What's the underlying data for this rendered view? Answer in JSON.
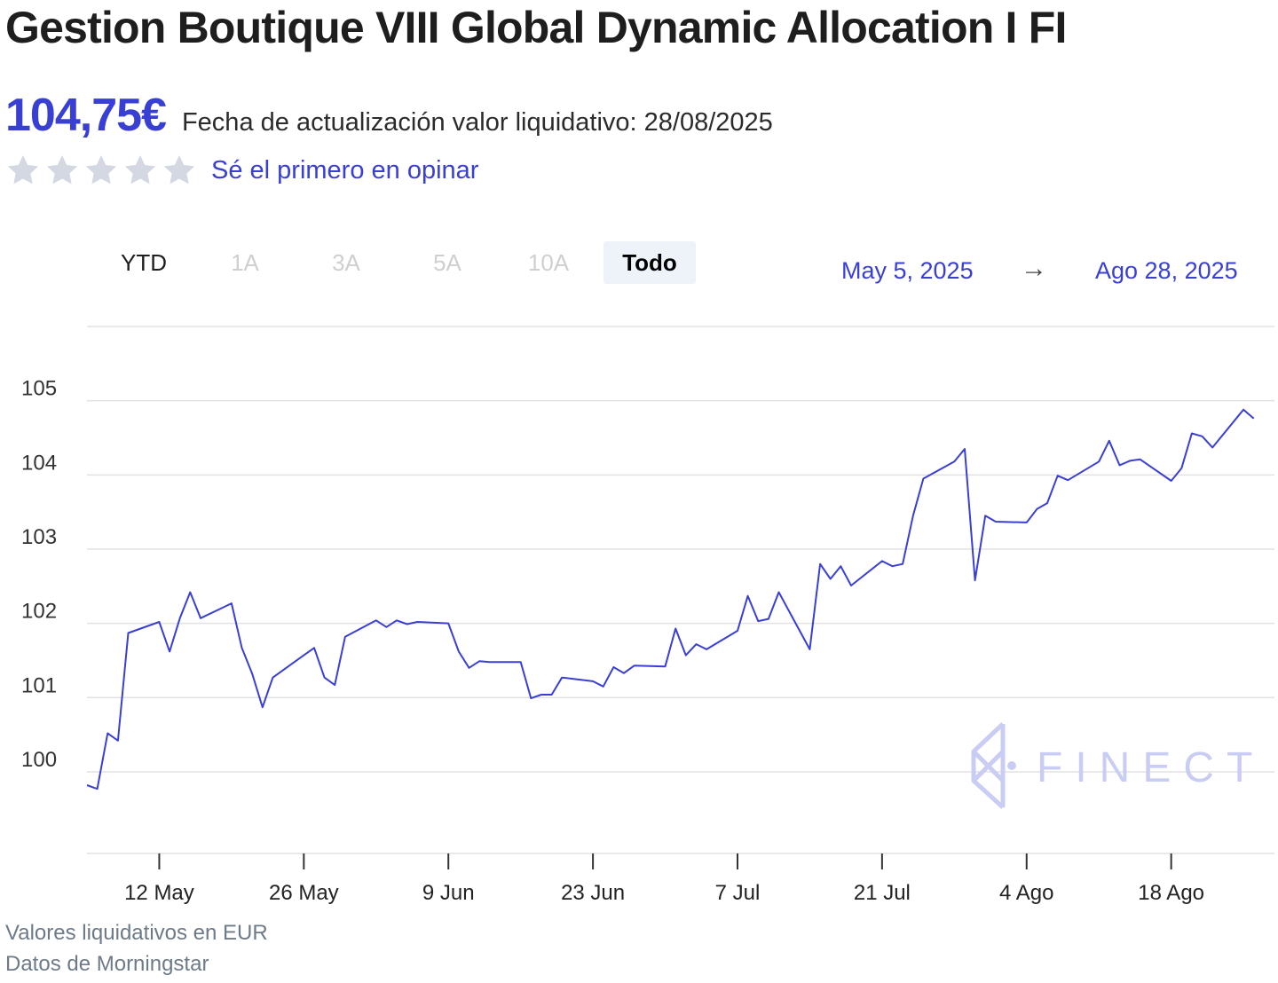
{
  "header": {
    "title": "Gestion Boutique VIII Global Dynamic Allocation I FI",
    "price": "104,75€",
    "update_label": "Fecha de actualización valor liquidativo: 28/08/2025"
  },
  "rating": {
    "stars": 5,
    "star_color": "#d3d8e2",
    "link": "Sé el primero en opinar"
  },
  "tabs": [
    {
      "label": "YTD",
      "state": "enabled"
    },
    {
      "label": "1A",
      "state": "disabled"
    },
    {
      "label": "3A",
      "state": "disabled"
    },
    {
      "label": "5A",
      "state": "disabled"
    },
    {
      "label": "10A",
      "state": "disabled"
    },
    {
      "label": "Todo",
      "state": "selected"
    }
  ],
  "date_range": {
    "from": "May 5, 2025",
    "arrow": "→",
    "to": "Ago 28, 2025"
  },
  "footer": {
    "currency_note": "Valores liquidativos en EUR",
    "source": "Datos de Morningstar"
  },
  "watermark": {
    "text": "FINECT"
  },
  "colors": {
    "accent": "#3a3fd4",
    "line": "#3a3fd4",
    "grid": "#e2e2e2",
    "watermark": "#c9cdf3"
  },
  "chart_data": {
    "type": "line",
    "title": "",
    "xlabel": "",
    "ylabel": "",
    "x_start": "2025-05-05",
    "x_end": "2025-08-28",
    "ylim": [
      98.9,
      106
    ],
    "yticks": [
      100,
      101,
      102,
      103,
      104,
      105
    ],
    "xticks": [
      {
        "label": "12 May",
        "date": "2025-05-12"
      },
      {
        "label": "26 May",
        "date": "2025-05-26"
      },
      {
        "label": "9 Jun",
        "date": "2025-06-09"
      },
      {
        "label": "23 Jun",
        "date": "2025-06-23"
      },
      {
        "label": "7 Jul",
        "date": "2025-07-07"
      },
      {
        "label": "21 Jul",
        "date": "2025-07-21"
      },
      {
        "label": "4 Ago",
        "date": "2025-08-04"
      },
      {
        "label": "18 Ago",
        "date": "2025-08-18"
      }
    ],
    "grid": true,
    "series": [
      {
        "name": "",
        "points": [
          [
            "2025-05-05",
            99.82
          ],
          [
            "2025-05-06",
            99.77
          ],
          [
            "2025-05-07",
            100.52
          ],
          [
            "2025-05-08",
            100.42
          ],
          [
            "2025-05-09",
            101.87
          ],
          [
            "2025-05-12",
            102.02
          ],
          [
            "2025-05-13",
            101.62
          ],
          [
            "2025-05-14",
            102.07
          ],
          [
            "2025-05-15",
            102.42
          ],
          [
            "2025-05-16",
            102.07
          ],
          [
            "2025-05-19",
            102.27
          ],
          [
            "2025-05-20",
            101.67
          ],
          [
            "2025-05-21",
            101.32
          ],
          [
            "2025-05-22",
            100.87
          ],
          [
            "2025-05-23",
            101.27
          ],
          [
            "2025-05-26",
            101.57
          ],
          [
            "2025-05-27",
            101.67
          ],
          [
            "2025-05-28",
            101.27
          ],
          [
            "2025-05-29",
            101.17
          ],
          [
            "2025-05-30",
            101.82
          ],
          [
            "2025-06-02",
            102.04
          ],
          [
            "2025-06-03",
            101.95
          ],
          [
            "2025-06-04",
            102.04
          ],
          [
            "2025-06-05",
            101.99
          ],
          [
            "2025-06-06",
            102.02
          ],
          [
            "2025-06-09",
            102.0
          ],
          [
            "2025-06-10",
            101.62
          ],
          [
            "2025-06-11",
            101.4
          ],
          [
            "2025-06-12",
            101.49
          ],
          [
            "2025-06-13",
            101.48
          ],
          [
            "2025-06-16",
            101.48
          ],
          [
            "2025-06-17",
            100.99
          ],
          [
            "2025-06-18",
            101.04
          ],
          [
            "2025-06-19",
            101.04
          ],
          [
            "2025-06-20",
            101.27
          ],
          [
            "2025-06-23",
            101.22
          ],
          [
            "2025-06-24",
            101.15
          ],
          [
            "2025-06-25",
            101.41
          ],
          [
            "2025-06-26",
            101.33
          ],
          [
            "2025-06-27",
            101.43
          ],
          [
            "2025-06-30",
            101.42
          ],
          [
            "2025-07-01",
            101.93
          ],
          [
            "2025-07-02",
            101.57
          ],
          [
            "2025-07-03",
            101.72
          ],
          [
            "2025-07-04",
            101.65
          ],
          [
            "2025-07-07",
            101.9
          ],
          [
            "2025-07-08",
            102.37
          ],
          [
            "2025-07-09",
            102.03
          ],
          [
            "2025-07-10",
            102.06
          ],
          [
            "2025-07-11",
            102.42
          ],
          [
            "2025-07-14",
            101.65
          ],
          [
            "2025-07-15",
            102.8
          ],
          [
            "2025-07-16",
            102.6
          ],
          [
            "2025-07-17",
            102.77
          ],
          [
            "2025-07-18",
            102.51
          ],
          [
            "2025-07-21",
            102.84
          ],
          [
            "2025-07-22",
            102.77
          ],
          [
            "2025-07-23",
            102.8
          ],
          [
            "2025-07-24",
            103.45
          ],
          [
            "2025-07-25",
            103.95
          ],
          [
            "2025-07-28",
            104.18
          ],
          [
            "2025-07-29",
            104.35
          ],
          [
            "2025-07-30",
            102.58
          ],
          [
            "2025-07-31",
            103.45
          ],
          [
            "2025-08-01",
            103.37
          ],
          [
            "2025-08-04",
            103.36
          ],
          [
            "2025-08-05",
            103.54
          ],
          [
            "2025-08-06",
            103.62
          ],
          [
            "2025-08-07",
            103.99
          ],
          [
            "2025-08-08",
            103.93
          ],
          [
            "2025-08-11",
            104.18
          ],
          [
            "2025-08-12",
            104.46
          ],
          [
            "2025-08-13",
            104.13
          ],
          [
            "2025-08-14",
            104.19
          ],
          [
            "2025-08-15",
            104.21
          ],
          [
            "2025-08-18",
            103.92
          ],
          [
            "2025-08-19",
            104.09
          ],
          [
            "2025-08-20",
            104.56
          ],
          [
            "2025-08-21",
            104.52
          ],
          [
            "2025-08-22",
            104.37
          ],
          [
            "2025-08-25",
            104.88
          ],
          [
            "2025-08-26",
            104.76
          ]
        ]
      }
    ]
  }
}
